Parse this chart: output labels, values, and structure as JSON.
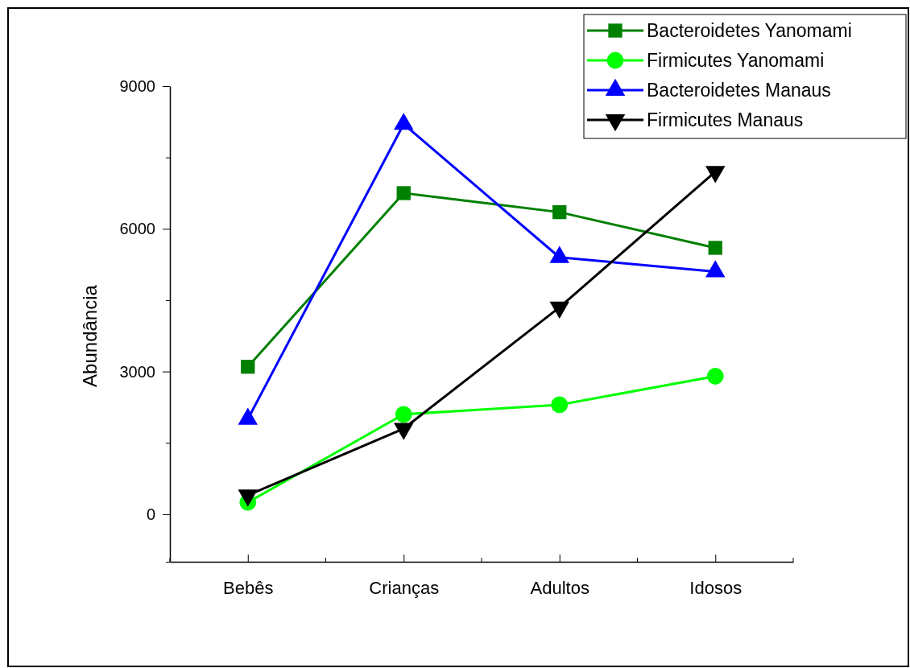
{
  "chart_data": {
    "type": "line",
    "ylabel": "Abundância",
    "categories": [
      "Bebês",
      "Crianças",
      "Adultos",
      "Idosos"
    ],
    "series": [
      {
        "name": "Bacteroidetes Yanomami",
        "color": "#008000",
        "marker": "square",
        "values": [
          3100,
          6750,
          6350,
          5600
        ]
      },
      {
        "name": "Firmicutes Yanomami",
        "color": "#00ff00",
        "marker": "circle",
        "values": [
          250,
          2100,
          2300,
          2900
        ]
      },
      {
        "name": "Bacteroidetes Manaus",
        "color": "#0000ff",
        "marker": "triangle",
        "values": [
          2000,
          8200,
          5400,
          5100
        ]
      },
      {
        "name": "Firmicutes Manaus",
        "color": "#000000",
        "marker": "triangle-down",
        "values": [
          400,
          1800,
          4350,
          7200
        ]
      }
    ],
    "ylim": [
      -1000,
      9000
    ],
    "yticks": [
      {
        "value": -1000,
        "label": null
      },
      0,
      {
        "value": 1500,
        "label": null
      },
      3000,
      {
        "value": 4500,
        "label": null
      },
      6000,
      {
        "value": 7500,
        "label": null
      },
      9000
    ],
    "grid": false,
    "legend": "top right",
    "line_style": "solid"
  }
}
